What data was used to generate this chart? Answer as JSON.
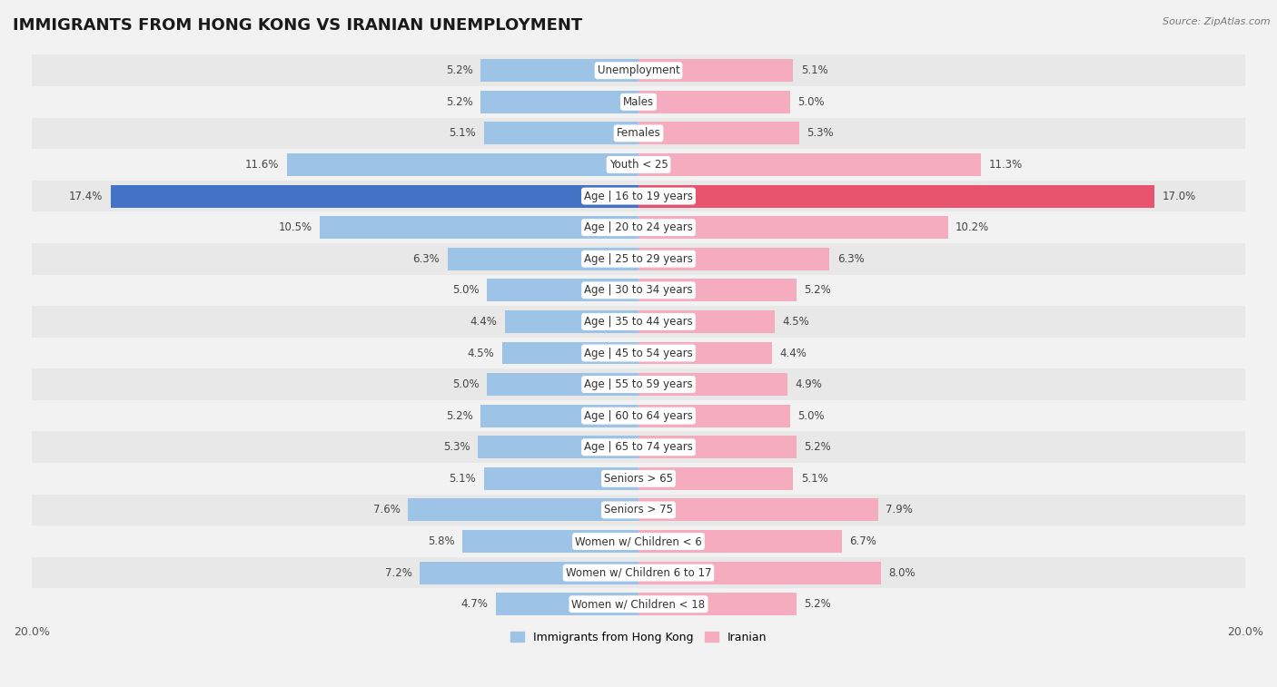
{
  "title": "IMMIGRANTS FROM HONG KONG VS IRANIAN UNEMPLOYMENT",
  "source": "Source: ZipAtlas.com",
  "categories": [
    "Unemployment",
    "Males",
    "Females",
    "Youth < 25",
    "Age | 16 to 19 years",
    "Age | 20 to 24 years",
    "Age | 25 to 29 years",
    "Age | 30 to 34 years",
    "Age | 35 to 44 years",
    "Age | 45 to 54 years",
    "Age | 55 to 59 years",
    "Age | 60 to 64 years",
    "Age | 65 to 74 years",
    "Seniors > 65",
    "Seniors > 75",
    "Women w/ Children < 6",
    "Women w/ Children 6 to 17",
    "Women w/ Children < 18"
  ],
  "hk_values": [
    5.2,
    5.2,
    5.1,
    11.6,
    17.4,
    10.5,
    6.3,
    5.0,
    4.4,
    4.5,
    5.0,
    5.2,
    5.3,
    5.1,
    7.6,
    5.8,
    7.2,
    4.7
  ],
  "ir_values": [
    5.1,
    5.0,
    5.3,
    11.3,
    17.0,
    10.2,
    6.3,
    5.2,
    4.5,
    4.4,
    4.9,
    5.0,
    5.2,
    5.1,
    7.9,
    6.7,
    8.0,
    5.2
  ],
  "hk_color": "#9dc3e6",
  "ir_color": "#f4acbe",
  "hk_color_highlight": "#4472c4",
  "ir_color_highlight": "#e8536e",
  "axis_max": 20.0,
  "bar_height": 0.72,
  "bg_color": "#f2f2f2",
  "stripe_color_odd": "#e8e8e8",
  "stripe_color_even": "#f2f2f2",
  "legend_hk": "Immigrants from Hong Kong",
  "legend_ir": "Iranian",
  "title_fontsize": 13,
  "label_fontsize": 8.5,
  "value_fontsize": 8.5
}
